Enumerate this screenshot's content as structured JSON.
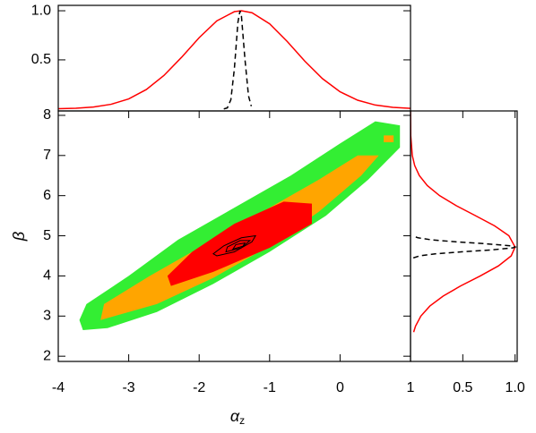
{
  "chart_data": [
    {
      "type": "contour",
      "xlabel": {
        "main": "α",
        "sub": "z"
      },
      "ylabel": "β",
      "xlim": [
        -4,
        1
      ],
      "ylim": [
        1.87,
        8.11
      ],
      "xticks": [
        -4,
        -3,
        -2,
        -1,
        0,
        1
      ],
      "yticks": [
        2,
        3,
        4,
        5,
        6,
        7,
        8
      ],
      "series": [
        {
          "color": "#33ee33",
          "filled": true,
          "x": [
            -3.65,
            -3.3,
            -2.6,
            -1.8,
            -1,
            -0.2,
            0.4,
            0.85,
            0.85,
            0.5,
            0,
            -0.7,
            -1.5,
            -2.3,
            -3,
            -3.6,
            -3.7
          ],
          "y": [
            2.65,
            2.7,
            3.1,
            3.8,
            4.6,
            5.5,
            6.4,
            7.2,
            7.75,
            7.85,
            7.3,
            6.5,
            5.7,
            4.9,
            4.0,
            3.3,
            2.9
          ]
        },
        {
          "color": "#ffa500",
          "filled": true,
          "x": [
            -3.4,
            -2.6,
            -1.8,
            -1,
            -0.3,
            0.3,
            0.55,
            0.25,
            -0.3,
            -1.1,
            -1.9,
            -2.7,
            -3.35
          ],
          "y": [
            2.9,
            3.3,
            3.95,
            4.75,
            5.6,
            6.5,
            7.0,
            7.0,
            6.4,
            5.6,
            4.8,
            4.0,
            3.3
          ]
        },
        {
          "color": "#ffa500",
          "filled": true,
          "x": [
            0.62,
            0.76,
            0.76,
            0.62
          ],
          "y": [
            7.33,
            7.33,
            7.5,
            7.5
          ]
        },
        {
          "color": "#ff0000",
          "filled": true,
          "x": [
            -2.4,
            -1.8,
            -1.0,
            -0.4,
            -0.4,
            -0.8,
            -1.5,
            -2.1,
            -2.45
          ],
          "y": [
            3.75,
            4.1,
            4.7,
            5.3,
            5.8,
            5.85,
            5.3,
            4.6,
            4.0
          ]
        },
        {
          "color": "#000000",
          "filled": false,
          "x": [
            -1.75,
            -1.5,
            -1.25,
            -1.2,
            -1.4,
            -1.65,
            -1.8
          ],
          "y": [
            4.5,
            4.6,
            4.85,
            5.0,
            4.95,
            4.75,
            4.55
          ]
        },
        {
          "color": "#000000",
          "filled": false,
          "x": [
            -1.62,
            -1.4,
            -1.28,
            -1.42,
            -1.6
          ],
          "y": [
            4.6,
            4.7,
            4.88,
            4.88,
            4.72
          ]
        },
        {
          "color": "#000000",
          "filled": false,
          "x": [
            -1.52,
            -1.38,
            -1.35,
            -1.48
          ],
          "y": [
            4.67,
            4.74,
            4.82,
            4.78
          ]
        }
      ]
    },
    {
      "type": "line",
      "xlim": [
        -4,
        1
      ],
      "ylim": [
        -0.02,
        1.055
      ],
      "yticks": [
        0.5,
        {
          "value": 1,
          "label": "1.0"
        }
      ],
      "series": [
        {
          "color": "#ff0000",
          "dash": false,
          "x": [
            -4,
            -3.75,
            -3.5,
            -3.25,
            -3,
            -2.75,
            -2.5,
            -2.25,
            -2,
            -1.75,
            -1.5,
            -1.4,
            -1.25,
            -1,
            -0.75,
            -0.5,
            -0.25,
            0,
            0.25,
            0.5,
            0.75,
            1
          ],
          "values": [
            0.0025,
            0.0074,
            0.0198,
            0.0477,
            0.1027,
            0.198,
            0.341,
            0.526,
            0.726,
            0.897,
            0.991,
            1,
            0.98,
            0.867,
            0.687,
            0.487,
            0.309,
            0.175,
            0.089,
            0.04,
            0.016,
            0.006
          ]
        },
        {
          "color": "#000000",
          "dash": true,
          "x": [
            -1.65,
            -1.6,
            -1.55,
            -1.5,
            -1.45,
            -1.42,
            -1.4,
            -1.35,
            -1.3,
            -1.26
          ],
          "values": [
            0.0006,
            0.011,
            0.095,
            0.411,
            0.882,
            1,
            0.946,
            0.506,
            0.135,
            0.028
          ]
        }
      ]
    },
    {
      "type": "line",
      "orientation": "vertical",
      "xlim": [
        0,
        1.02
      ],
      "ylim": [
        1.87,
        8.11
      ],
      "xticks": [
        0.5,
        {
          "value": 1,
          "label": "1.0"
        }
      ],
      "series": [
        {
          "color": "#ff0000",
          "dash": false,
          "x": [
            2.6,
            2.75,
            3,
            3.25,
            3.5,
            3.75,
            4,
            4.25,
            4.5,
            4.72,
            5,
            5.25,
            5.5,
            5.75,
            6,
            6.25,
            6.5,
            6.75,
            7,
            7.5,
            8.1
          ],
          "values": [
            0.03,
            0.048,
            0.099,
            0.185,
            0.313,
            0.479,
            0.667,
            0.841,
            0.963,
            1,
            0.941,
            0.803,
            0.622,
            0.437,
            0.278,
            0.161,
            0.084,
            0.04,
            0.017,
            0.002,
            0
          ]
        },
        {
          "color": "#000000",
          "dash": true,
          "x": [
            4.45,
            4.5,
            4.55,
            4.6,
            4.65,
            4.7,
            4.72,
            4.75,
            4.8,
            4.85,
            4.9,
            4.95,
            5.0
          ],
          "values": [
            0.027,
            0.089,
            0.236,
            0.487,
            0.783,
            0.98,
            1,
            0.956,
            0.726,
            0.43,
            0.198,
            0.071,
            0.02
          ]
        }
      ]
    }
  ]
}
